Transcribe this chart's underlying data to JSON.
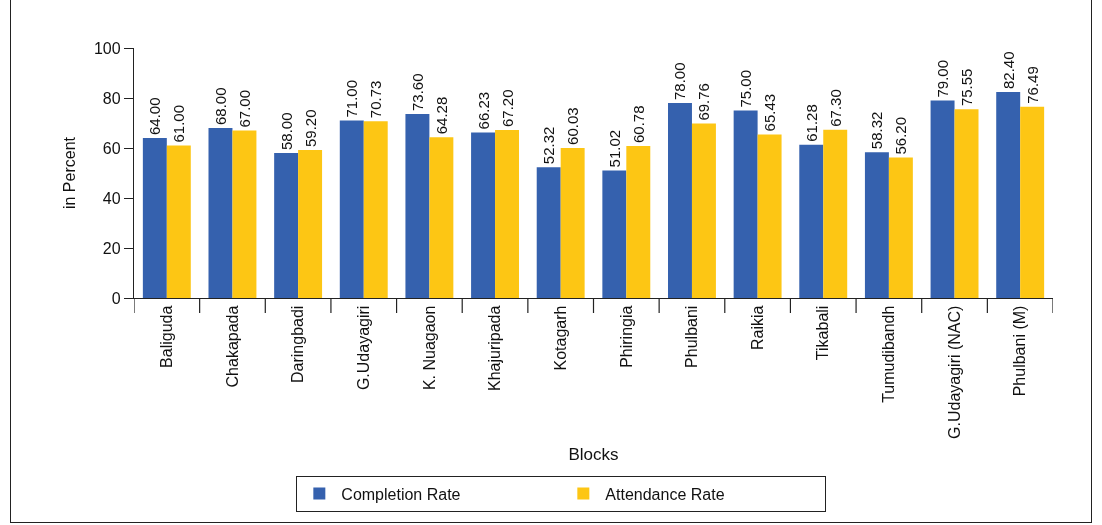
{
  "chart_data": {
    "type": "bar",
    "xlabel": "Blocks",
    "ylabel": "in Percent",
    "categories": [
      "Baliguda",
      "Chakapada",
      "Daringbadi",
      "G.Udayagiri",
      "K. Nuagaon",
      "Khajuripada",
      "Kotagarh",
      "Phiringia",
      "Phulbani",
      "Raikia",
      "Tikabali",
      "Tumudibandh",
      "G.Udayagiri (NAC)",
      "Phulbani (M)"
    ],
    "series": [
      {
        "name": "Completion Rate",
        "color": "#3561ae",
        "values": [
          64.0,
          68.0,
          58.0,
          71.0,
          73.6,
          66.23,
          52.32,
          51.02,
          78.0,
          75.0,
          61.28,
          58.32,
          79.0,
          82.4
        ],
        "value_labels": [
          "64.00",
          "68.00",
          "58.00",
          "71.00",
          "73.60",
          "66.23",
          "52.32",
          "51.02",
          "78.00",
          "75.00",
          "61.28",
          "58.32",
          "79.00",
          "82.40"
        ]
      },
      {
        "name": "Attendance Rate",
        "color": "#fdc614",
        "values": [
          61.0,
          67.0,
          59.2,
          70.73,
          64.28,
          67.2,
          60.03,
          60.78,
          69.76,
          65.43,
          67.3,
          56.2,
          75.55,
          76.49
        ],
        "value_labels": [
          "61.00",
          "67.00",
          "59.20",
          "70.73",
          "64.28",
          "67.20",
          "60.03",
          "60.78",
          "69.76",
          "65.43",
          "67.30",
          "56.20",
          "75.55",
          "76.49"
        ]
      }
    ],
    "ylim": [
      0,
      100
    ],
    "yticks": [
      0,
      20,
      40,
      60,
      80,
      100
    ],
    "legend": "bottom"
  }
}
